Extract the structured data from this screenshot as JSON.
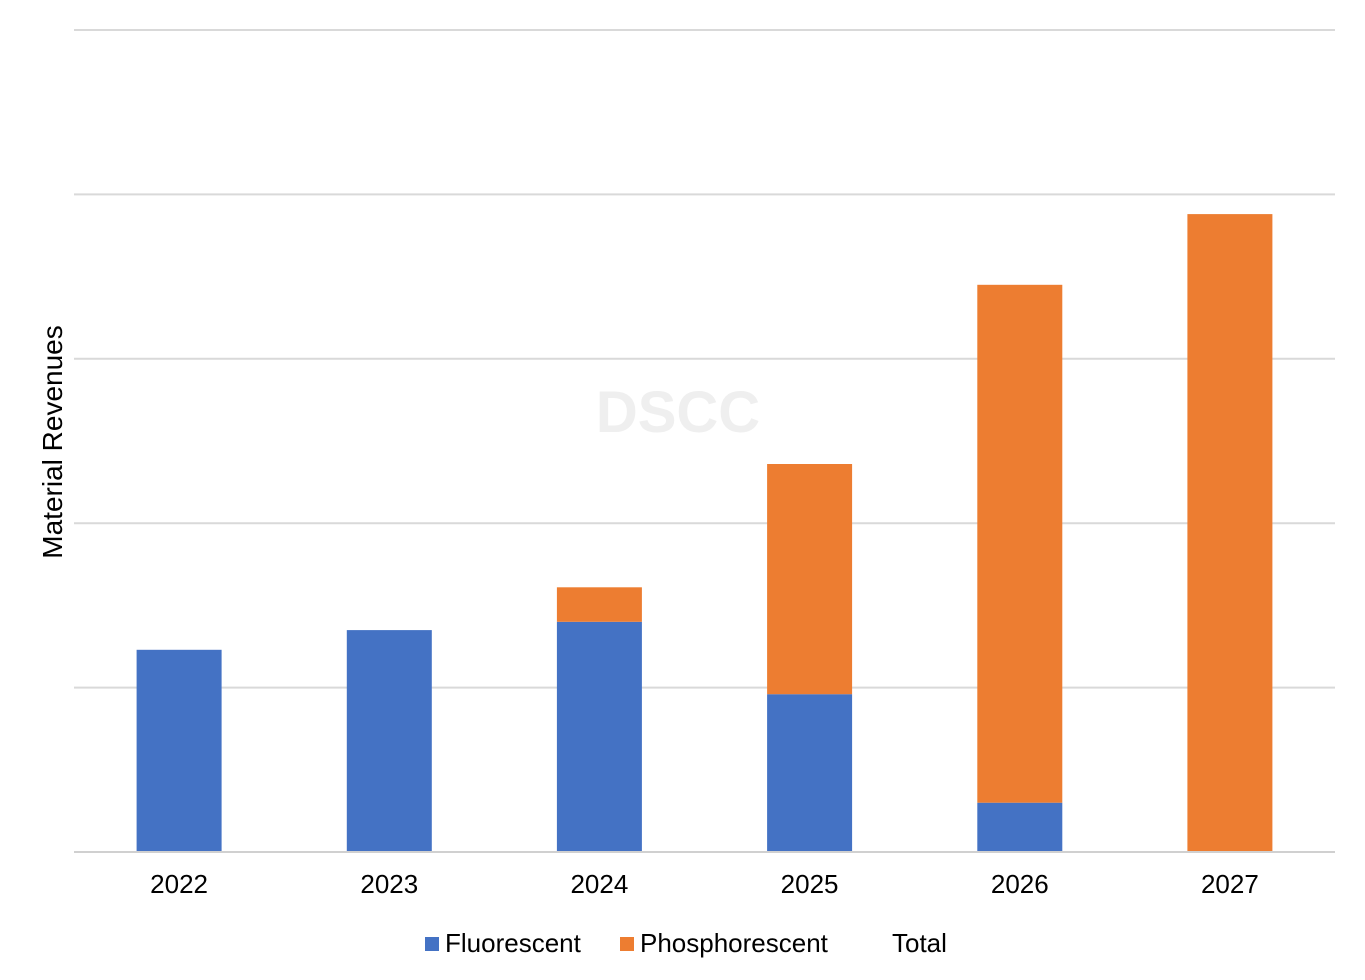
{
  "chart_data": {
    "type": "bar",
    "stacked": true,
    "watermark": "DSCC",
    "ylabel": "Material Revenues",
    "xlabel": "",
    "title": "",
    "ylim": [
      0,
      5
    ],
    "y_ticks_labeled": false,
    "grid": true,
    "legend_position": "bottom",
    "categories": [
      "2022",
      "2023",
      "2024",
      "2025",
      "2026",
      "2027"
    ],
    "series": [
      {
        "name": "Fluorescent",
        "color": "#4472C4",
        "values": [
          1.23,
          1.35,
          1.4,
          0.96,
          0.3,
          0.0
        ]
      },
      {
        "name": "Phosphorescent",
        "color": "#ED7D31",
        "values": [
          0.0,
          0.0,
          0.21,
          1.4,
          3.15,
          3.88
        ]
      }
    ],
    "legend": [
      {
        "label": "Fluorescent",
        "color": "#4472C4",
        "swatch": true
      },
      {
        "label": "Phosphorescent",
        "color": "#ED7D31",
        "swatch": true
      },
      {
        "label": "Total",
        "color": "",
        "swatch": false
      }
    ]
  }
}
